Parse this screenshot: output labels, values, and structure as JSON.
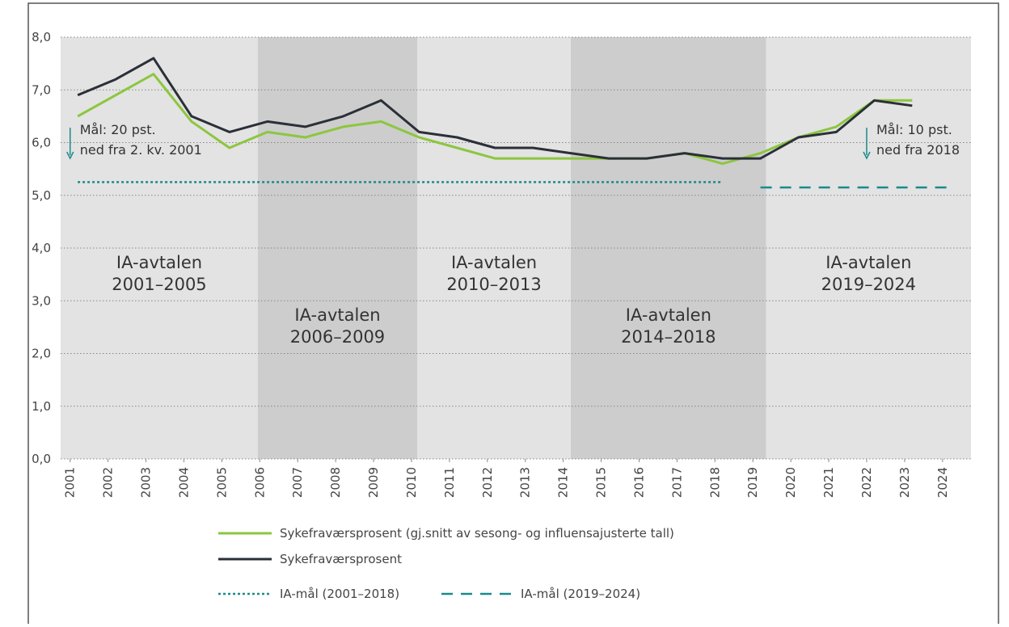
{
  "chart_data": {
    "type": "line",
    "xlim": [
      2000.75,
      2024.75
    ],
    "xticks": [
      2001,
      2002,
      2003,
      2004,
      2005,
      2006,
      2007,
      2008,
      2009,
      2010,
      2011,
      2012,
      2013,
      2014,
      2015,
      2016,
      2017,
      2018,
      2019,
      2020,
      2021,
      2022,
      2023,
      2024
    ],
    "ylim": [
      0,
      8
    ],
    "yticks": [
      {
        "value": 0,
        "label": "0,0"
      },
      {
        "value": 1,
        "label": "1,0"
      },
      {
        "value": 2,
        "label": "2,0"
      },
      {
        "value": 3,
        "label": "3,0"
      },
      {
        "value": 4,
        "label": "4,0"
      },
      {
        "value": 5,
        "label": "5,0"
      },
      {
        "value": 6,
        "label": "6,0"
      },
      {
        "value": 7,
        "label": "7,0"
      },
      {
        "value": 8,
        "label": "8,0"
      }
    ],
    "grid": true,
    "periods": [
      {
        "label": [
          "IA-avtalen",
          "2001–2005"
        ],
        "start": 2000.75,
        "end": 2005.95,
        "color": "#e3e3e3"
      },
      {
        "label": [
          "IA-avtalen",
          "2006–2009"
        ],
        "start": 2005.95,
        "end": 2010.15,
        "color": "#cdcdcd"
      },
      {
        "label": [
          "IA-avtalen",
          "2010–2013"
        ],
        "start": 2010.15,
        "end": 2014.2,
        "color": "#e3e3e3"
      },
      {
        "label": [
          "IA-avtalen",
          "2014–2018"
        ],
        "start": 2014.2,
        "end": 2019.35,
        "color": "#cdcdcd"
      },
      {
        "label": [
          "IA-avtalen",
          "2019–2024"
        ],
        "start": 2019.35,
        "end": 2024.75,
        "color": "#e3e3e3"
      }
    ],
    "series": [
      {
        "name": "Sykefraværsprosent (gj.snitt av  sesong- og influensajusterte tall)",
        "color": "#8cc63f",
        "style": "solid",
        "x": [
          2001.2,
          2002.2,
          2003.2,
          2004.2,
          2005.2,
          2006.2,
          2007.2,
          2008.2,
          2009.2,
          2010.2,
          2011.2,
          2012.2,
          2013.2,
          2014.2,
          2015.2,
          2016.2,
          2017.2,
          2018.2,
          2019.2,
          2020.2,
          2021.2,
          2022.2,
          2023.2
        ],
        "values": [
          6.5,
          6.9,
          7.3,
          6.4,
          5.9,
          6.2,
          6.1,
          6.3,
          6.4,
          6.1,
          5.9,
          5.7,
          5.7,
          5.7,
          5.7,
          5.7,
          5.8,
          5.6,
          5.8,
          6.1,
          6.3,
          6.8,
          6.8
        ]
      },
      {
        "name": "Sykefraværsprosent",
        "color": "#2b2f38",
        "style": "solid",
        "x": [
          2001.2,
          2002.2,
          2003.2,
          2004.2,
          2005.2,
          2006.2,
          2007.2,
          2008.2,
          2009.2,
          2010.2,
          2011.2,
          2012.2,
          2013.2,
          2014.2,
          2015.2,
          2016.2,
          2017.2,
          2018.2,
          2019.2,
          2020.2,
          2021.2,
          2022.2,
          2023.2
        ],
        "values": [
          6.9,
          7.2,
          7.6,
          6.5,
          6.2,
          6.4,
          6.3,
          6.5,
          6.8,
          6.2,
          6.1,
          5.9,
          5.9,
          5.8,
          5.7,
          5.7,
          5.8,
          5.7,
          5.7,
          6.1,
          6.2,
          6.8,
          6.7
        ]
      },
      {
        "name": "IA-mål (2001–2018)",
        "color": "#1b8a8a",
        "style": "dotted",
        "x": [
          2001.2,
          2018.2
        ],
        "values": [
          5.25,
          5.25
        ]
      },
      {
        "name": "IA-mål (2019–2024)",
        "color": "#1b8a8a",
        "style": "dashed",
        "x": [
          2019.2,
          2024.3
        ],
        "values": [
          5.15,
          5.15
        ]
      }
    ],
    "annotations": [
      {
        "lines": [
          "Mål: 20 pst.",
          "ned fra 2. kv. 2001"
        ],
        "x": 2001.0
      },
      {
        "lines": [
          "Mål: 10 pst.",
          "ned fra 2018"
        ],
        "x": 2022.0
      }
    ]
  }
}
